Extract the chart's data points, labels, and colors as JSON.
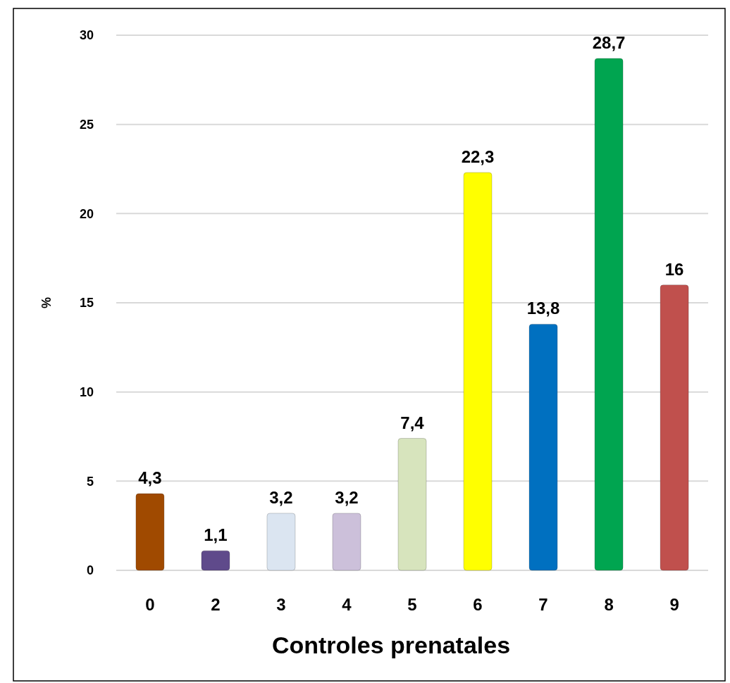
{
  "chart_data": {
    "type": "bar",
    "xlabel": "Controles prenatales",
    "ylabel": "%",
    "categories": [
      "0",
      "2",
      "3",
      "4",
      "5",
      "6",
      "7",
      "8",
      "9"
    ],
    "values": [
      4.3,
      1.1,
      3.2,
      3.2,
      7.4,
      22.3,
      13.8,
      28.7,
      16
    ],
    "value_labels": [
      "4,3",
      "1,1",
      "3,2",
      "3,2",
      "7,4",
      "22,3",
      "13,8",
      "28,7",
      "16"
    ],
    "colors": [
      "#a04a00",
      "#5f4a8b",
      "#dbe5f1",
      "#ccc0da",
      "#d7e4bd",
      "#ffff00",
      "#0070c0",
      "#00a550",
      "#c0504d"
    ],
    "ylim": [
      0,
      30
    ],
    "yticks": [
      0,
      5,
      10,
      15,
      20,
      25,
      30
    ],
    "grid": "y"
  }
}
